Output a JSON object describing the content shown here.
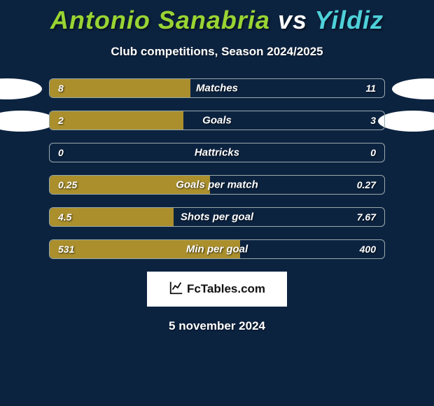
{
  "title": {
    "player1": "Antonio Sanabria",
    "vs": "vs",
    "player2": "Yildiz",
    "color1": "#99d433",
    "color_vs": "#ffffff",
    "color2": "#4fd1d9"
  },
  "subtitle": "Club competitions, Season 2024/2025",
  "stats": {
    "type": "head-to-head-bar",
    "bar_left_color": "#aa8f2c",
    "bar_right_color": "transparent",
    "border_color": "#99aaaa",
    "background_color": "#0c2340",
    "label_fontsize": 15,
    "value_fontsize": 14,
    "font_style": "italic",
    "rows": [
      {
        "label": "Matches",
        "left": "8",
        "right": "11",
        "left_pct": 42
      },
      {
        "label": "Goals",
        "left": "2",
        "right": "3",
        "left_pct": 40
      },
      {
        "label": "Hattricks",
        "left": "0",
        "right": "0",
        "left_pct": 0
      },
      {
        "label": "Goals per match",
        "left": "0.25",
        "right": "0.27",
        "left_pct": 48
      },
      {
        "label": "Shots per goal",
        "left": "4.5",
        "right": "7.67",
        "left_pct": 37
      },
      {
        "label": "Min per goal",
        "left": "531",
        "right": "400",
        "left_pct": 57
      }
    ]
  },
  "brand": "FcTables.com",
  "date": "5 november 2024"
}
